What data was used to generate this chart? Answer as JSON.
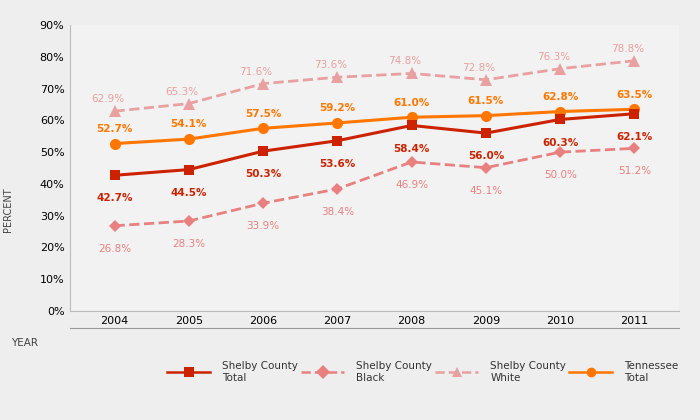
{
  "years": [
    2004,
    2005,
    2006,
    2007,
    2008,
    2009,
    2010,
    2011
  ],
  "shelby_total": [
    42.7,
    44.5,
    50.3,
    53.6,
    58.4,
    56.0,
    60.3,
    62.1
  ],
  "shelby_black": [
    26.8,
    28.3,
    33.9,
    38.4,
    46.9,
    45.1,
    50.0,
    51.2
  ],
  "shelby_white": [
    62.9,
    65.3,
    71.6,
    73.6,
    74.8,
    72.8,
    76.3,
    78.8
  ],
  "tennessee_total": [
    52.7,
    54.1,
    57.5,
    59.2,
    61.0,
    61.5,
    62.8,
    63.5
  ],
  "color_shelby_total": "#cc2200",
  "color_shelby_black": "#e88080",
  "color_shelby_white": "#e8a0a0",
  "color_tennessee": "#ff7700",
  "bg_color": "#eeeeee",
  "plot_bg_color": "#f2f2f2",
  "legend_bg": "#f0f0f0",
  "ylim": [
    0,
    90
  ],
  "yticks": [
    0,
    10,
    20,
    30,
    40,
    50,
    60,
    70,
    80,
    90
  ],
  "ylabel": "PERCENT",
  "xlabel": "YEAR",
  "annotation_fontsize": 7.5,
  "tick_fontsize": 8
}
